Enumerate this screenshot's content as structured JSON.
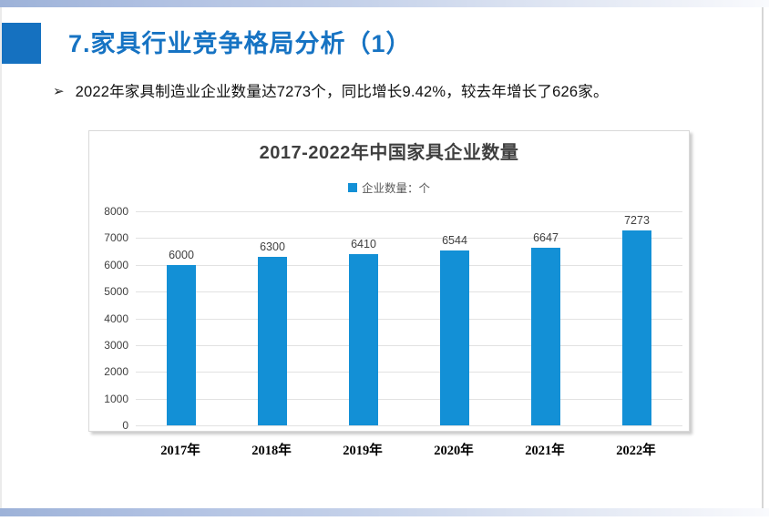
{
  "slide": {
    "title": "7.家具行业竞争格局分析（1）",
    "bullet_marker": "➢",
    "bullet_text": "2022年家具制造业企业数量达7273个，同比增长9.42%，较去年增长了626家。"
  },
  "colors": {
    "accent_blue": "#1571c0",
    "title_blue": "#1673c3",
    "bar_blue": "#1390d6",
    "grid_gray": "#e2e2e2",
    "chart_text_gray": "#3f3f3f"
  },
  "chart_data": {
    "type": "bar",
    "title": "2017-2022年中国家具企业数量",
    "legend": [
      {
        "label": "企业数量：个",
        "color": "#1390d6"
      }
    ],
    "legend_position": "top",
    "categories": [
      "2017年",
      "2018年",
      "2019年",
      "2020年",
      "2021年",
      "2022年"
    ],
    "values": [
      6000,
      6300,
      6410,
      6544,
      6647,
      7273
    ],
    "bar_color": "#1390d6",
    "ylim": [
      0,
      8000
    ],
    "ytick_step": 1000,
    "grid": true,
    "xlabel": "",
    "ylabel": ""
  }
}
